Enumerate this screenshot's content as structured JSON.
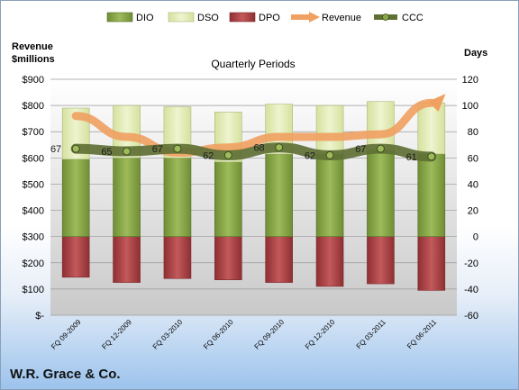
{
  "company": "W.R. Grace & Co.",
  "chart_data": {
    "type": "bar",
    "subtitle": "Quarterly Periods",
    "left_axis_label_line1": "Revenue",
    "left_axis_label_line2": "$millions",
    "right_axis_label": "Days",
    "categories": [
      "FQ 09-2009",
      "FQ 12-2009",
      "FQ 03-2010",
      "FQ 06-2010",
      "FQ 09-2010",
      "FQ 12-2010",
      "FQ 03-2011",
      "FQ 06-2011"
    ],
    "left_ylim": [
      0,
      900
    ],
    "left_ticks": [
      "$-",
      "$100",
      "$200",
      "$300",
      "$400",
      "$500",
      "$600",
      "$700",
      "$800",
      "$900"
    ],
    "right_ylim": [
      -60,
      120
    ],
    "right_ticks": [
      "-60",
      "-40",
      "-20",
      "0",
      "20",
      "40",
      "60",
      "80",
      "100",
      "120"
    ],
    "legend": [
      "DIO",
      "DSO",
      "DPO",
      "Revenue",
      "CCC"
    ],
    "legend_position": "top",
    "colors": {
      "DIO": "#8aa84a",
      "DSO": "#e3ecb8",
      "DPO": "#b04a4c",
      "Revenue": "#f0a060",
      "CCC": "#5f7035"
    },
    "series": [
      {
        "name": "DIO",
        "axis": "days",
        "values": [
          59,
          60,
          60,
          57,
          63,
          63,
          66,
          63
        ]
      },
      {
        "name": "DSO",
        "axis": "days",
        "values": [
          39,
          40,
          39,
          38,
          38,
          37,
          37,
          39
        ]
      },
      {
        "name": "DPO",
        "axis": "days",
        "values": [
          -31,
          -35,
          -32,
          -33,
          -35,
          -38,
          -36,
          -41
        ]
      },
      {
        "name": "Revenue",
        "axis": "revenue",
        "values": [
          760,
          680,
          620,
          640,
          680,
          680,
          690,
          810
        ]
      },
      {
        "name": "CCC",
        "axis": "days",
        "values": [
          67,
          65,
          67,
          62,
          68,
          62,
          67,
          61
        ]
      }
    ],
    "ccc_labels": [
      "67",
      "65",
      "67",
      "62",
      "68",
      "62",
      "67",
      "61"
    ]
  }
}
